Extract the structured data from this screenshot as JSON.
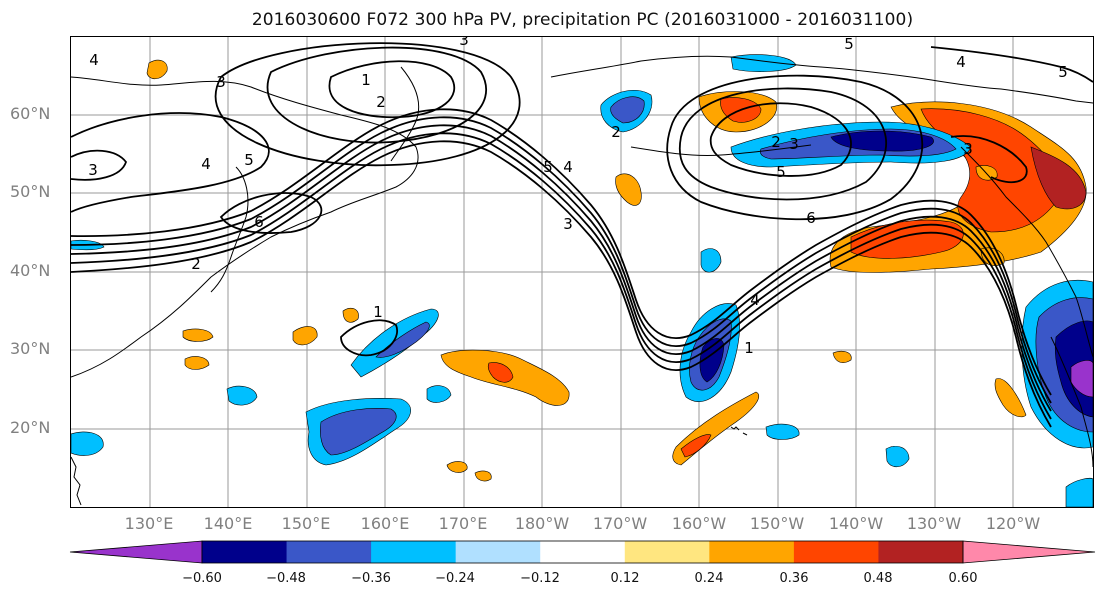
{
  "title": "2016030600 F072 300 hPa PV, precipitation PC (2016031000 - 2016031100)",
  "map": {
    "lat_labels": [
      "60°N",
      "50°N",
      "40°N",
      "30°N",
      "20°N"
    ],
    "lon_labels": [
      "130°E",
      "140°E",
      "150°E",
      "160°E",
      "170°E",
      "180°W",
      "170°W",
      "160°W",
      "150°W",
      "140°W",
      "130°W",
      "120°W"
    ],
    "contour_labels": [
      "4",
      "3",
      "1",
      "2",
      "3",
      "4",
      "5",
      "6",
      "2",
      "3",
      "4",
      "5",
      "1",
      "3",
      "2",
      "1",
      "4",
      "5",
      "6",
      "3",
      "2",
      "5",
      "4",
      "5",
      "3"
    ],
    "colors": {
      "deep_purple": "#9933cc",
      "navy": "#00008b",
      "royal_blue": "#3a57c8",
      "sky_blue": "#00bfff",
      "light_blue": "#b0e0ff",
      "white": "#ffffff",
      "light_yellow": "#ffe680",
      "orange": "#ffa500",
      "red_orange": "#ff4500",
      "dark_red": "#b22222",
      "pink": "#ff88aa"
    }
  },
  "colorbar": {
    "ticks": [
      "−0.60",
      "−0.48",
      "−0.36",
      "−0.24",
      "−0.12",
      "0.12",
      "0.24",
      "0.36",
      "0.48",
      "0.60"
    ],
    "bins": [
      "#9933cc",
      "#00008b",
      "#3a57c8",
      "#00bfff",
      "#b0e0ff",
      "#ffffff",
      "#ffe680",
      "#ffa500",
      "#ff4500",
      "#b22222",
      "#ff88aa"
    ]
  }
}
